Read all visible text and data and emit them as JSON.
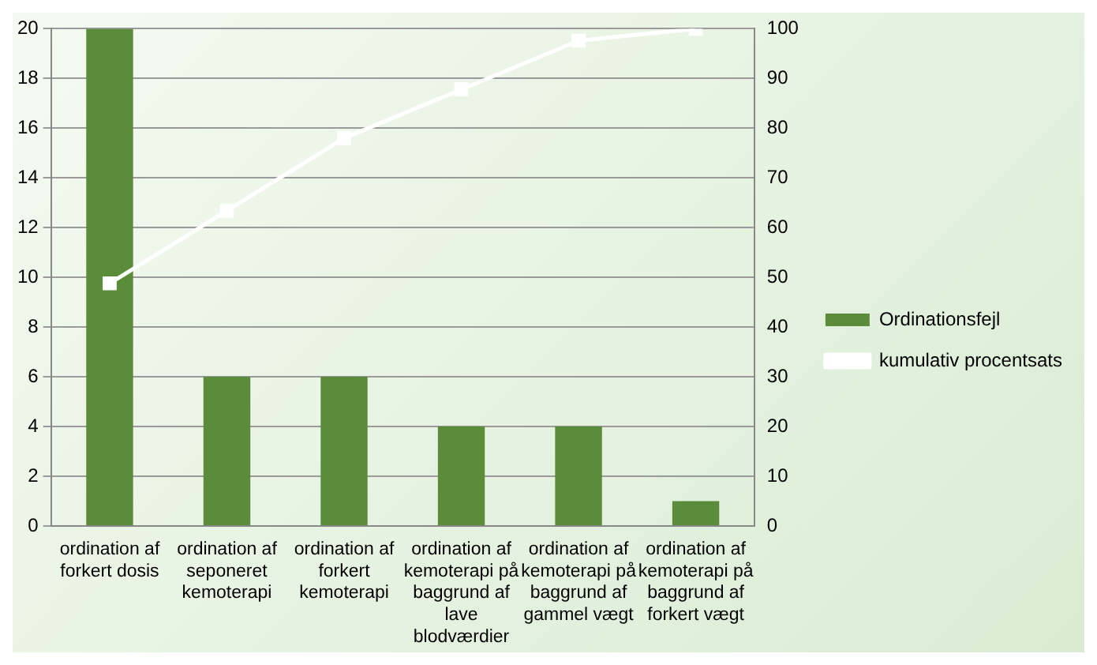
{
  "chart_data": {
    "type": "bar",
    "categories": [
      "ordination af forkert dosis",
      "ordination af seponeret kemoterapi",
      "ordination af forkert kemoterapi",
      "ordination af kemoterapi på baggrund af lave blodværdier",
      "ordination af kemoterapi på baggrund af gammel vægt",
      "ordination af kemoterapi på baggrund af forkert vægt"
    ],
    "series": [
      {
        "name": "Ordinationsfejl",
        "color": "#5b8c3a",
        "values": [
          20,
          6,
          6,
          4,
          4,
          1
        ]
      },
      {
        "name": "kumulativ procentsats",
        "type": "line",
        "axis": "y2",
        "color": "#ffffff",
        "values": [
          48.8,
          63.4,
          78.0,
          87.8,
          97.6,
          100
        ]
      }
    ],
    "ylim": [
      0,
      20
    ],
    "yticks": [
      0,
      2,
      4,
      6,
      8,
      10,
      12,
      14,
      16,
      18,
      20
    ],
    "y2lim": [
      0,
      100
    ],
    "y2ticks": [
      0,
      10,
      20,
      30,
      40,
      50,
      60,
      70,
      80,
      90,
      100
    ],
    "grid": "y",
    "legend": "right",
    "marker": "square",
    "line_style": "solid"
  }
}
